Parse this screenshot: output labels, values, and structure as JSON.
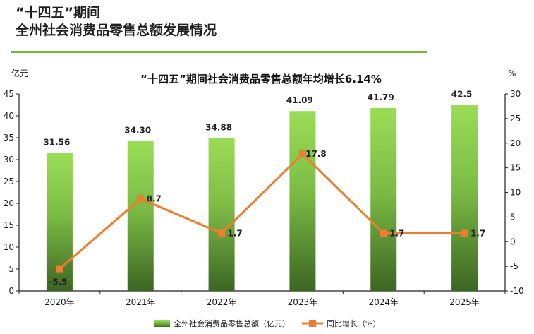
{
  "header": {
    "title_line1": "“十四五”期间",
    "title_line2": "全州社会消费品零售总额发展情况"
  },
  "colors": {
    "bar_top": "#9bdc57",
    "bar_bottom": "#3c6623",
    "line": "#ed7d31",
    "rule": "#76b33f"
  },
  "chart_data": {
    "type": "bar",
    "title": "“十四五”期间社会消费品零售总额年均增长6.14%",
    "ylabel": "亿元",
    "y2label": "%",
    "categories": [
      "2020年",
      "2021年",
      "2022年",
      "2023年",
      "2024年",
      "2025年"
    ],
    "ylim": [
      0,
      45
    ],
    "yticks": [
      "0",
      "5",
      "10",
      "15",
      "20",
      "25",
      "30",
      "35",
      "40",
      "45"
    ],
    "y2lim": [
      -10,
      30
    ],
    "y2ticks": [
      "-10",
      "-5",
      "0",
      "5",
      "10",
      "15",
      "20",
      "25",
      "30"
    ],
    "grid": false,
    "legend_position": "bottom",
    "series": [
      {
        "name": "全州社会消费品零售总额（亿元）",
        "type": "bar",
        "axis": "left",
        "values": [
          31.56,
          34.3,
          34.88,
          41.09,
          41.79,
          42.5
        ],
        "labels": [
          "31.56",
          "34.30",
          "34.88",
          "41.09",
          "41.79",
          "42.5"
        ]
      },
      {
        "name": "同比增长（%）",
        "type": "line",
        "axis": "right",
        "values": [
          -5.5,
          8.7,
          1.7,
          17.8,
          1.7,
          1.7
        ],
        "labels": [
          "-5.5",
          "8.7",
          "1.7",
          "17.8",
          "1.7",
          "1.7"
        ]
      }
    ]
  }
}
